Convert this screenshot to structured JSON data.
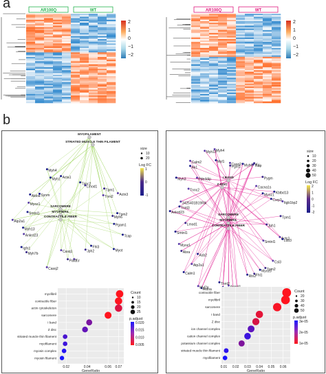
{
  "panel_a": {
    "letter": "a",
    "heatmaps": [
      {
        "group_labels": [
          "AR100Q",
          "WT"
        ],
        "group_colors": [
          "#22b14c",
          "#22b14c"
        ],
        "scale_ticks": [
          "2",
          "1",
          "0",
          "−1",
          "−2"
        ]
      },
      {
        "group_labels": [
          "AR100Q",
          "WT"
        ],
        "group_colors": [
          "#e0157a",
          "#e0157a"
        ],
        "scale_ticks": [
          "2",
          "1",
          "0",
          "−1",
          "−2"
        ]
      }
    ]
  },
  "panel_b": {
    "letter": "b",
    "left": {
      "network": {
        "edge_color": "#a5d96a",
        "hub_terms": [
          "MYOFILAMENT",
          "STRIATED MUSCLE THIN FILAMENT",
          "SARCOMERE",
          "MYOFIBRIL",
          "CONTRACTILE FIBER"
        ],
        "genes": [
          "Acta1",
          "Tnnc2",
          "Lmod1",
          "Tpm1",
          "Tnni2",
          "Actn3",
          "Tpm2",
          "Myh6",
          "Pgam1",
          "Tcap",
          "Myot",
          "Fhl3",
          "Jph2",
          "Ky",
          "Pak1",
          "Casq1",
          "Casq2",
          "Myh7b",
          "Igfn1",
          "Ankrd23",
          "Myh13",
          "Atp2a1",
          "Smtnl1",
          "Myoz1",
          "Aldoa",
          "Synm",
          "Myh1",
          "Myh4"
        ],
        "size_legend": {
          "title": "size",
          "values": [
            "10",
            "20"
          ]
        },
        "color_legend": {
          "title": "Log FC",
          "ticks": [
            "1",
            "0",
            "-1"
          ]
        }
      },
      "dotplot": {
        "terms": [
          "myofibril",
          "contractile fiber",
          "actin cytoskeleton",
          "sarcomere",
          "I band",
          "Z disc",
          "striated muscle thin filament",
          "myofilament",
          "myosin complex",
          "myosin filament"
        ],
        "gene_ratio": [
          0.071,
          0.07,
          0.07,
          0.06,
          0.042,
          0.038,
          0.019,
          0.019,
          0.018,
          0.016
        ],
        "count": [
          31,
          30,
          30,
          26,
          18,
          16,
          8,
          8,
          8,
          7
        ],
        "p_adjust": [
          0.001,
          0.001,
          0.004,
          0.001,
          0.012,
          0.014,
          0.016,
          0.017,
          0.019,
          0.02
        ],
        "x_label": "GeneRatio",
        "x_ticks": [
          "0.02",
          "0.04",
          "0.06",
          "0.07"
        ],
        "x_tick_values": [
          0.02,
          0.04,
          0.06,
          0.07
        ],
        "xlim": [
          0.012,
          0.075
        ],
        "count_legend": {
          "title": "Count",
          "values": [
            "10",
            "15",
            "20",
            "25"
          ]
        },
        "padj_legend": {
          "title": "p.adjust",
          "ticks": [
            "0.020",
            "0.015",
            "0.010",
            "0.005"
          ]
        }
      }
    },
    "right": {
      "network": {
        "edge_color": "#e0138c",
        "hub_terms": [
          "Z DISC",
          "I BAND",
          "SARCOMERE",
          "MYOFIBRIL",
          "CONTRACTILE FIBER"
        ],
        "genes": [
          "Pgm1",
          "Casq2",
          "Myh6",
          "Tcap",
          "Ky",
          "Pygm",
          "Cacna1s",
          "Myoz1",
          "Kbtbd13",
          "Csrp3",
          "Itgb1bp2",
          "Tpm1",
          "Jph1",
          "Actc1",
          "Ldb3",
          "Smtnl1",
          "Csl3",
          "Myoz3",
          "Tpm2",
          "Fhl1",
          "Rtn2",
          "Pak1",
          "Ankrd1",
          "Tmod4",
          "Pdlim7",
          "Tnnt2",
          "Aldoa",
          "Myl2a",
          "Atp2a1",
          "Calm1",
          "Asb2",
          "Abra",
          "Myoz1",
          "Smtnl1",
          "Lmod1",
          "Ankrd23",
          "3425401B19Rik",
          "Tnnt3",
          "Myh3",
          "Tnnc2",
          "Ak1",
          "Pde4dip",
          "Calm2",
          "Myh13",
          "Myh4",
          "Myl1"
        ],
        "size_legend": {
          "title": "size",
          "values": [
            "10",
            "20",
            "30",
            "40",
            "50"
          ]
        },
        "color_legend": {
          "title": "Log FC",
          "ticks": [
            "2",
            "1",
            "0",
            "-1",
            "-2"
          ]
        }
      },
      "dotplot": {
        "terms": [
          "contractile fiber",
          "myofibril",
          "sarcomere",
          "I band",
          "Z disc",
          "ion channel complex",
          "cation channel complex",
          "potassium channel complex",
          "striated muscle thin filament",
          "myofilament"
        ],
        "gene_ratio": [
          0.063,
          0.062,
          0.055,
          0.04,
          0.037,
          0.033,
          0.03,
          0.025,
          0.012,
          0.011
        ],
        "count": [
          48,
          47,
          42,
          30,
          28,
          25,
          23,
          19,
          9,
          8
        ],
        "p_adjust": [
          1e-06,
          1e-06,
          2e-06,
          5e-06,
          7e-06,
          2.5e-05,
          3e-05,
          2e-05,
          3.2e-05,
          3.5e-05
        ],
        "x_label": "GeneRatio",
        "x_ticks": [
          "0.01",
          "0.02",
          "0.03",
          "0.04",
          "0.05",
          "0.06"
        ],
        "x_tick_values": [
          0.01,
          0.02,
          0.03,
          0.04,
          0.05,
          0.06
        ],
        "xlim": [
          0.008,
          0.066
        ],
        "count_legend": {
          "title": "Count",
          "values": [
            "20",
            "30",
            "40",
            "50"
          ]
        },
        "padj_legend": {
          "title": "p.adjust",
          "ticks": [
            "3e-05",
            "2e-05",
            "1e-05"
          ]
        }
      }
    }
  }
}
